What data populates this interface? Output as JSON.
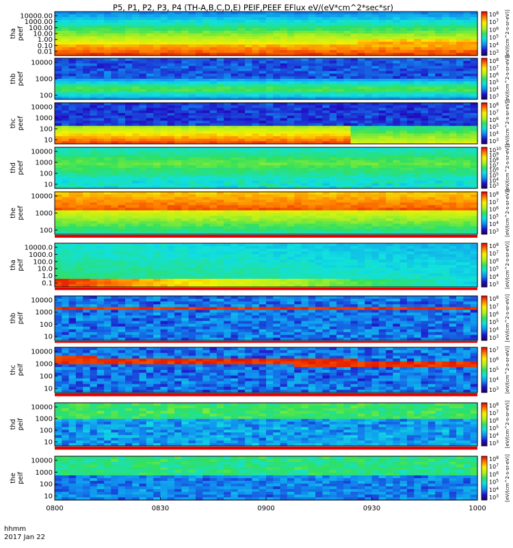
{
  "title": "P5, P1, P2, P3, P4 (TH-A,B,C,D,E) PEIF,PEEF EFlux eV/(eV*cm^2*sec*sr)",
  "x_axis": {
    "label_line1": "hhmm",
    "label_line2": "2017 Jan 22",
    "ticks": [
      "0800",
      "0830",
      "0900",
      "0930",
      "1000"
    ]
  },
  "colorbar_unit": "[eV/(cm^2-s-sr-eV)]",
  "chart_data": [
    {
      "type": "heatmap",
      "ylabel": [
        "tha",
        "peef"
      ],
      "log_y": true,
      "yticks": [
        "10000.00",
        "1000.00",
        "100.00",
        "10.00",
        "1.00",
        "0.10",
        "0.01"
      ],
      "cbar_ticks": [
        "10^8",
        "10^7",
        "10^6",
        "10^5",
        "10^4",
        "10^3"
      ],
      "xlim": [
        "0800",
        "1000"
      ]
    },
    {
      "type": "heatmap",
      "ylabel": [
        "thb",
        "peef"
      ],
      "log_y": true,
      "yticks": [
        "10000",
        "1000",
        "100"
      ],
      "cbar_ticks": [
        "10^8",
        "10^7",
        "10^6",
        "10^5",
        "10^4",
        "10^3"
      ],
      "xlim": [
        "0800",
        "1000"
      ]
    },
    {
      "type": "heatmap",
      "ylabel": [
        "thc",
        "peef"
      ],
      "log_y": true,
      "yticks": [
        "10000",
        "1000",
        "100",
        "10"
      ],
      "cbar_ticks": [
        "10^8",
        "10^7",
        "10^6",
        "10^5",
        "10^4",
        "10^3"
      ],
      "xlim": [
        "0800",
        "1000"
      ]
    },
    {
      "type": "heatmap",
      "ylabel": [
        "thd",
        "peef"
      ],
      "log_y": true,
      "yticks": [
        "10000",
        "1000",
        "100",
        "10"
      ],
      "cbar_ticks": [
        "10^10",
        "10^9",
        "10^8",
        "10^7",
        "10^6",
        "10^5",
        "10^4",
        "10^3"
      ],
      "xlim": [
        "0800",
        "1000"
      ]
    },
    {
      "type": "heatmap",
      "ylabel": [
        "the",
        "peef"
      ],
      "log_y": true,
      "yticks": [
        "10000",
        "1000",
        "100"
      ],
      "cbar_ticks": [
        "10^8",
        "10^7",
        "10^6",
        "10^5",
        "10^4",
        "10^3"
      ],
      "xlim": [
        "0800",
        "1000"
      ]
    },
    {
      "type": "heatmap",
      "ylabel": [
        "tha",
        "peif"
      ],
      "log_y": true,
      "yticks": [
        "10000.0",
        "1000.0",
        "100.0",
        "10.0",
        "1.0",
        "0.1"
      ],
      "cbar_ticks": [
        "10^8",
        "10^7",
        "10^6",
        "10^5",
        "10^4",
        "10^3"
      ],
      "xlim": [
        "0800",
        "1000"
      ]
    },
    {
      "type": "heatmap",
      "ylabel": [
        "thb",
        "peif"
      ],
      "log_y": true,
      "yticks": [
        "10000",
        "1000",
        "100",
        "10"
      ],
      "cbar_ticks": [
        "10^8",
        "10^7",
        "10^6",
        "10^5",
        "10^4",
        "10^3"
      ],
      "xlim": [
        "0800",
        "1000"
      ]
    },
    {
      "type": "heatmap",
      "ylabel": [
        "thc",
        "peif"
      ],
      "log_y": true,
      "yticks": [
        "10000",
        "1000",
        "100",
        "10"
      ],
      "cbar_ticks": [
        "10^7",
        "10^6",
        "10^5",
        "10^4",
        "10^3"
      ],
      "xlim": [
        "0800",
        "1000"
      ]
    },
    {
      "type": "heatmap",
      "ylabel": [
        "thd",
        "peif"
      ],
      "log_y": true,
      "yticks": [
        "10000",
        "1000",
        "100",
        "10"
      ],
      "cbar_ticks": [
        "10^8",
        "10^7",
        "10^6",
        "10^5",
        "10^4",
        "10^3"
      ],
      "xlim": [
        "0800",
        "1000"
      ]
    },
    {
      "type": "heatmap",
      "ylabel": [
        "the",
        "peif"
      ],
      "log_y": true,
      "yticks": [
        "10000",
        "1000",
        "100",
        "10"
      ],
      "cbar_ticks": [
        "10^8",
        "10^7",
        "10^6",
        "10^5",
        "10^4",
        "10^3"
      ],
      "xlim": [
        "0800",
        "1000"
      ]
    }
  ]
}
